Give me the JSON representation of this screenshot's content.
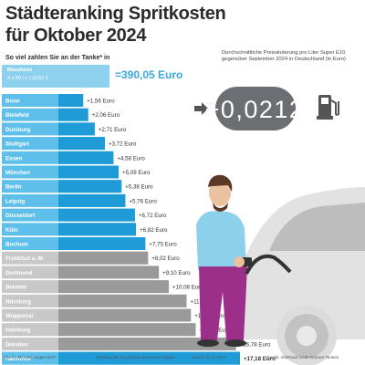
{
  "header": {
    "title_line1": "Städteranking Spritkosten",
    "title_line2": "für Oktober 2024",
    "subtitle": "So viel zahlen Sie an der Tanke* in"
  },
  "reference": {
    "city": "Mannheim",
    "formula": "4 x 60 l x 1,6252 €",
    "total": "=390,05 Euro",
    "color": "#8ed1ef"
  },
  "info": {
    "description": "Durchschnittliche Preisänderung pro Liter Super E10 gegenüber September 2024 in Deutschland (in Euro)",
    "change": "+0,0212"
  },
  "chart_data": {
    "type": "bar",
    "orientation": "horizontal",
    "categories": [
      "Bonn",
      "Bielefeld",
      "Duisburg",
      "Stuttgart",
      "Essen",
      "München",
      "Berlin",
      "Leipzig",
      "Düsseldorf",
      "Köln",
      "Bochum",
      "Frankfurt a. M.",
      "Dortmund",
      "Bremen",
      "Nürnberg",
      "Wuppertal",
      "Hamburg",
      "Dresden",
      "Hannover"
    ],
    "values": [
      1.56,
      2.06,
      2.71,
      3.72,
      4.58,
      5.09,
      5.38,
      5.76,
      6.72,
      6.82,
      7.75,
      8.02,
      9.1,
      10.08,
      11.86,
      12.29,
      12.77,
      16.78,
      17.18
    ],
    "value_labels": [
      "+1,56 Euro",
      "+2,06 Euro",
      "+2,71 Euro",
      "+3,72 Euro",
      "+4,58 Euro",
      "+5,09 Euro",
      "+5,38 Euro",
      "+5,76 Euro",
      "+6,72 Euro",
      "+6,82 Euro",
      "+7,75 Euro",
      "+8,02 Euro",
      "+9,10 Euro",
      "+10,08 Euro",
      "+11,86 Euro",
      "+12,29 Euro",
      "+12,77 Euro",
      "+16,78 Euro",
      "+17,18 Euro"
    ],
    "unit": "Euro",
    "bar_colors": {
      "light": "#5ec0ea",
      "dark": "#1f9bd7",
      "grey_light": "#c8c8c8",
      "grey_dark": "#9a9a9a"
    },
    "highlight_last": true
  },
  "footer": {
    "note1": "*für 4 x 60 Liter „Super E10\"",
    "note2": "Ranking der 20 größten deutschen Städte",
    "note3": "Stand: 01.11.2024",
    "note4": "Quelle: infoRoad GmbH/Clever Tanken"
  }
}
